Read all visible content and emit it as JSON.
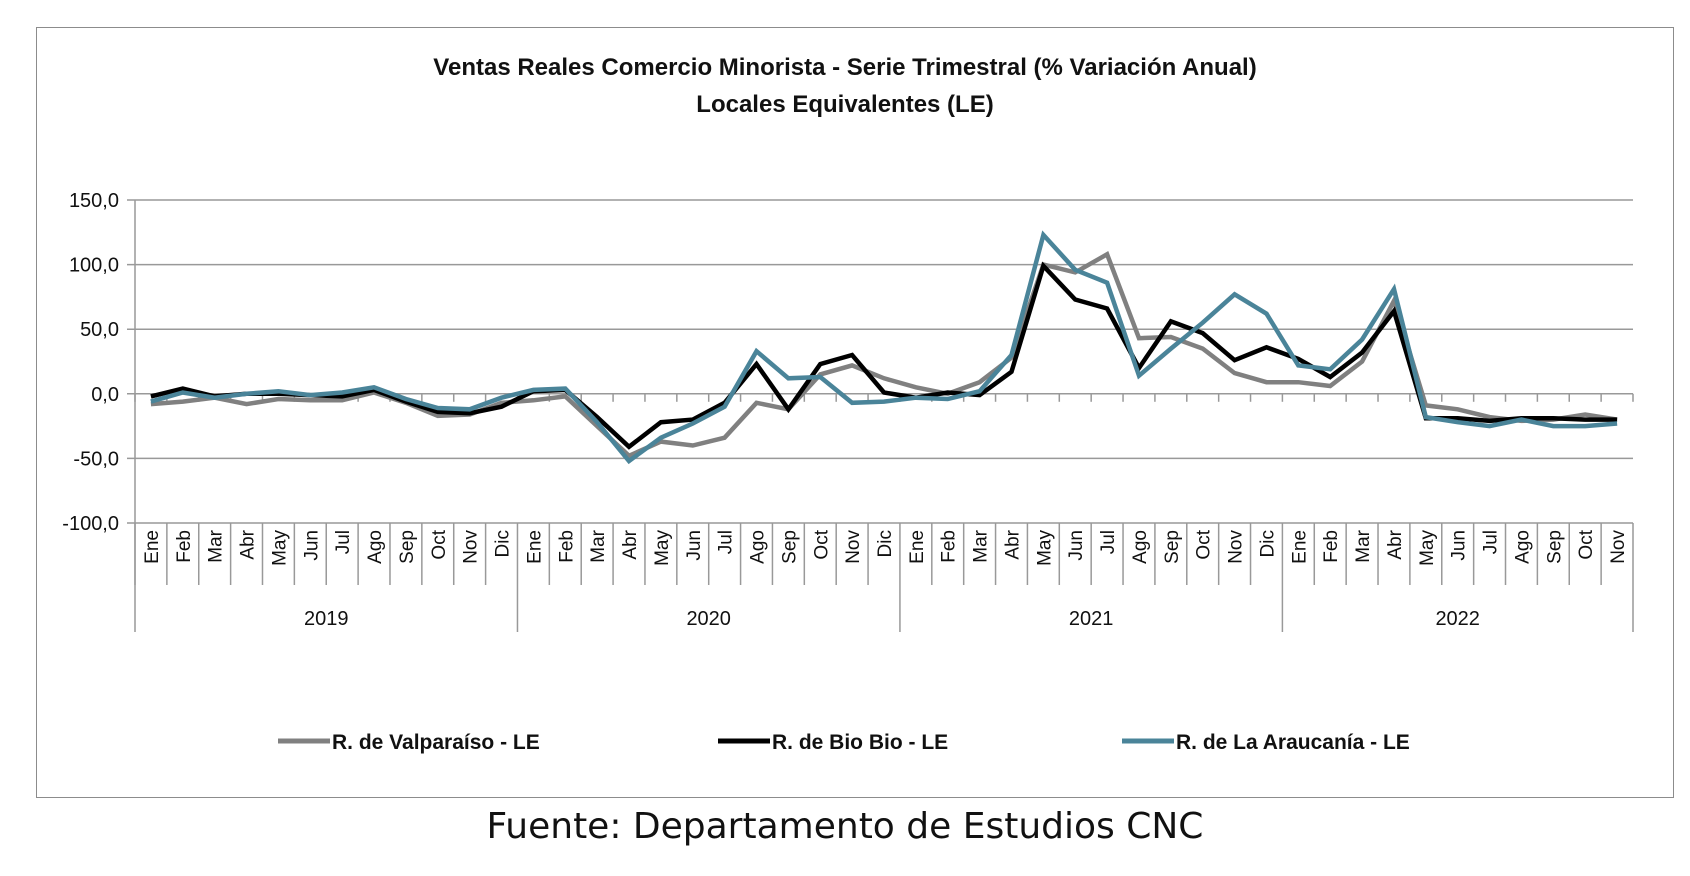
{
  "chart_data": {
    "type": "line",
    "title": "Ventas Reales Comercio Minorista - Serie Trimestral (% Variación Anual)",
    "subtitle": "Locales Equivalentes (LE)",
    "xlabel": "",
    "ylabel": "",
    "ylim": [
      -100,
      150
    ],
    "yticks": [
      "150,0",
      "100,0",
      "50,0",
      "0,0",
      "-50,0",
      "-100,0"
    ],
    "ytick_values": [
      150,
      100,
      50,
      0,
      -50,
      -100
    ],
    "grid": true,
    "legend_position": "bottom",
    "years": [
      {
        "label": "2019",
        "months": 12
      },
      {
        "label": "2020",
        "months": 12
      },
      {
        "label": "2021",
        "months": 12
      },
      {
        "label": "2022",
        "months": 11
      }
    ],
    "categories": [
      "Ene",
      "Feb",
      "Mar",
      "Abr",
      "May",
      "Jun",
      "Jul",
      "Ago",
      "Sep",
      "Oct",
      "Nov",
      "Dic",
      "Ene",
      "Feb",
      "Mar",
      "Abr",
      "May",
      "Jun",
      "Jul",
      "Ago",
      "Sep",
      "Oct",
      "Nov",
      "Dic",
      "Ene",
      "Feb",
      "Mar",
      "Abr",
      "May",
      "Jun",
      "Jul",
      "Ago",
      "Sep",
      "Oct",
      "Nov",
      "Dic",
      "Ene",
      "Feb",
      "Mar",
      "Abr",
      "May",
      "Jun",
      "Jul",
      "Ago",
      "Sep",
      "Oct",
      "Nov"
    ],
    "series": [
      {
        "name": "R. de Valparaíso - LE",
        "color": "#808080",
        "values": [
          -8,
          -6,
          -3,
          -8,
          -4,
          -5,
          -5,
          1,
          -7,
          -17,
          -16,
          -7,
          -5,
          -2,
          -25,
          -48,
          -37,
          -40,
          -34,
          -7,
          -12,
          15,
          22,
          12,
          5,
          0,
          9,
          28,
          100,
          94,
          108,
          43,
          44,
          35,
          16,
          9,
          9,
          6,
          25,
          72,
          -9,
          -12,
          -18,
          -21,
          -20,
          -16,
          -20
        ]
      },
      {
        "name": "R. de Bio Bio - LE",
        "color": "#000000",
        "values": [
          -2,
          4,
          -2,
          0,
          0,
          -1,
          -2,
          3,
          -6,
          -14,
          -15,
          -10,
          2,
          3,
          -18,
          -41,
          -22,
          -20,
          -7,
          23,
          -12,
          23,
          30,
          1,
          -3,
          1,
          -1,
          17,
          99,
          73,
          66,
          20,
          56,
          47,
          26,
          36,
          27,
          13,
          32,
          64,
          -19,
          -19,
          -21,
          -19,
          -19,
          -20,
          -20
        ]
      },
      {
        "name": "R. de La Araucanía - LE",
        "color": "#4a8499",
        "values": [
          -6,
          1,
          -3,
          0,
          2,
          -1,
          1,
          5,
          -4,
          -11,
          -12,
          -3,
          3,
          4,
          -22,
          -52,
          -34,
          -23,
          -10,
          33,
          12,
          13,
          -7,
          -6,
          -3,
          -4,
          2,
          30,
          123,
          96,
          86,
          14,
          35,
          55,
          77,
          62,
          22,
          19,
          42,
          81,
          -18,
          -22,
          -25,
          -20,
          -25,
          -25,
          -23
        ]
      }
    ]
  },
  "source": "Fuente: Departamento de Estudios CNC"
}
